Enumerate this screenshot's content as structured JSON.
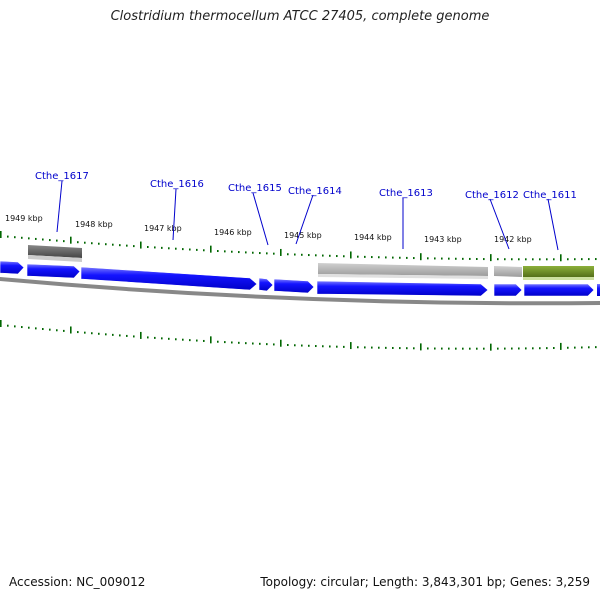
{
  "title": "Clostridium thermocellum ATCC 27405, complete genome",
  "footer": {
    "accession": "Accession: NC_009012",
    "summary": "Topology: circular; Length: 3,843,301 bp; Genes: 3,259"
  },
  "colors": {
    "forward_cds": "#0000ee",
    "other_feature": "#aaaaaa",
    "dark_feature": "#666666",
    "highlight_feature": "#6b8e23",
    "backbone": "#888888",
    "tick": "#006600",
    "label_link": "#0000cc"
  },
  "kbp_labels": [
    "1949 kbp",
    "1948 kbp",
    "1947 kbp",
    "1946 kbp",
    "1945 kbp",
    "1944 kbp",
    "1943 kbp",
    "1942 kbp"
  ],
  "gene_labels": [
    "Cthe_1617",
    "Cthe_1616",
    "Cthe_1615",
    "Cthe_1614",
    "Cthe_1613",
    "Cthe_1612",
    "Cthe_1611"
  ]
}
